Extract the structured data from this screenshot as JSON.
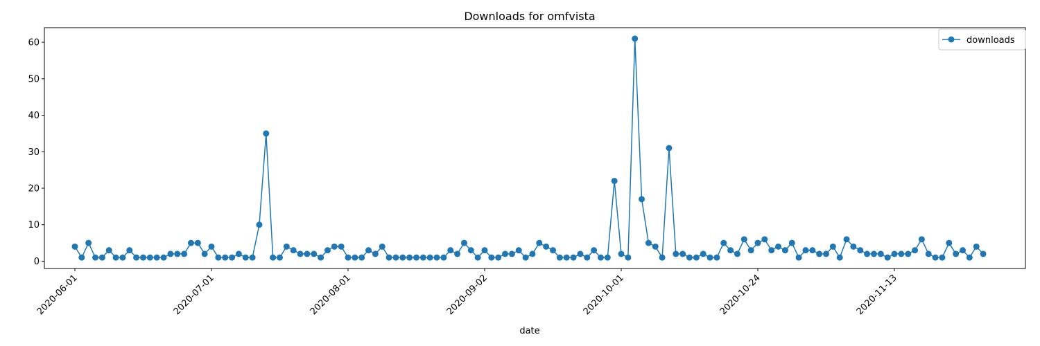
{
  "chart_data": {
    "type": "line",
    "title": "Downloads for omfvista",
    "xlabel": "date",
    "ylabel": "",
    "ylim": [
      -2,
      64
    ],
    "yticks": [
      0,
      10,
      20,
      30,
      40,
      50,
      60
    ],
    "xtick_labels": [
      "2020-06-01",
      "2020-07-01",
      "2020-08-01",
      "2020-09-02",
      "2020-10-01",
      "2020-10-24",
      "2020-11-13"
    ],
    "grid": false,
    "legend_position": "top-right",
    "series": [
      {
        "name": "downloads",
        "color": "#1f77b4",
        "marker": "circle",
        "values": [
          4,
          1,
          5,
          1,
          1,
          3,
          1,
          1,
          3,
          1,
          1,
          1,
          1,
          1,
          2,
          2,
          2,
          5,
          5,
          2,
          4,
          1,
          1,
          1,
          2,
          1,
          1,
          10,
          35,
          1,
          1,
          4,
          3,
          2,
          2,
          2,
          1,
          3,
          4,
          4,
          1,
          1,
          1,
          3,
          2,
          4,
          1,
          1,
          1,
          1,
          1,
          1,
          1,
          1,
          1,
          3,
          2,
          5,
          3,
          1,
          3,
          1,
          1,
          2,
          2,
          3,
          1,
          2,
          5,
          4,
          3,
          1,
          1,
          1,
          2,
          1,
          3,
          1,
          1,
          22,
          2,
          1,
          61,
          17,
          5,
          4,
          1,
          31,
          2,
          2,
          1,
          1,
          2,
          1,
          1,
          5,
          3,
          2,
          6,
          3,
          5,
          6,
          3,
          4,
          3,
          5,
          1,
          3,
          3,
          2,
          2,
          4,
          1,
          6,
          4,
          3,
          2,
          2,
          2,
          1,
          2,
          2,
          2,
          3,
          6,
          2,
          1,
          1,
          5,
          2,
          3,
          1,
          4,
          2
        ]
      }
    ]
  }
}
